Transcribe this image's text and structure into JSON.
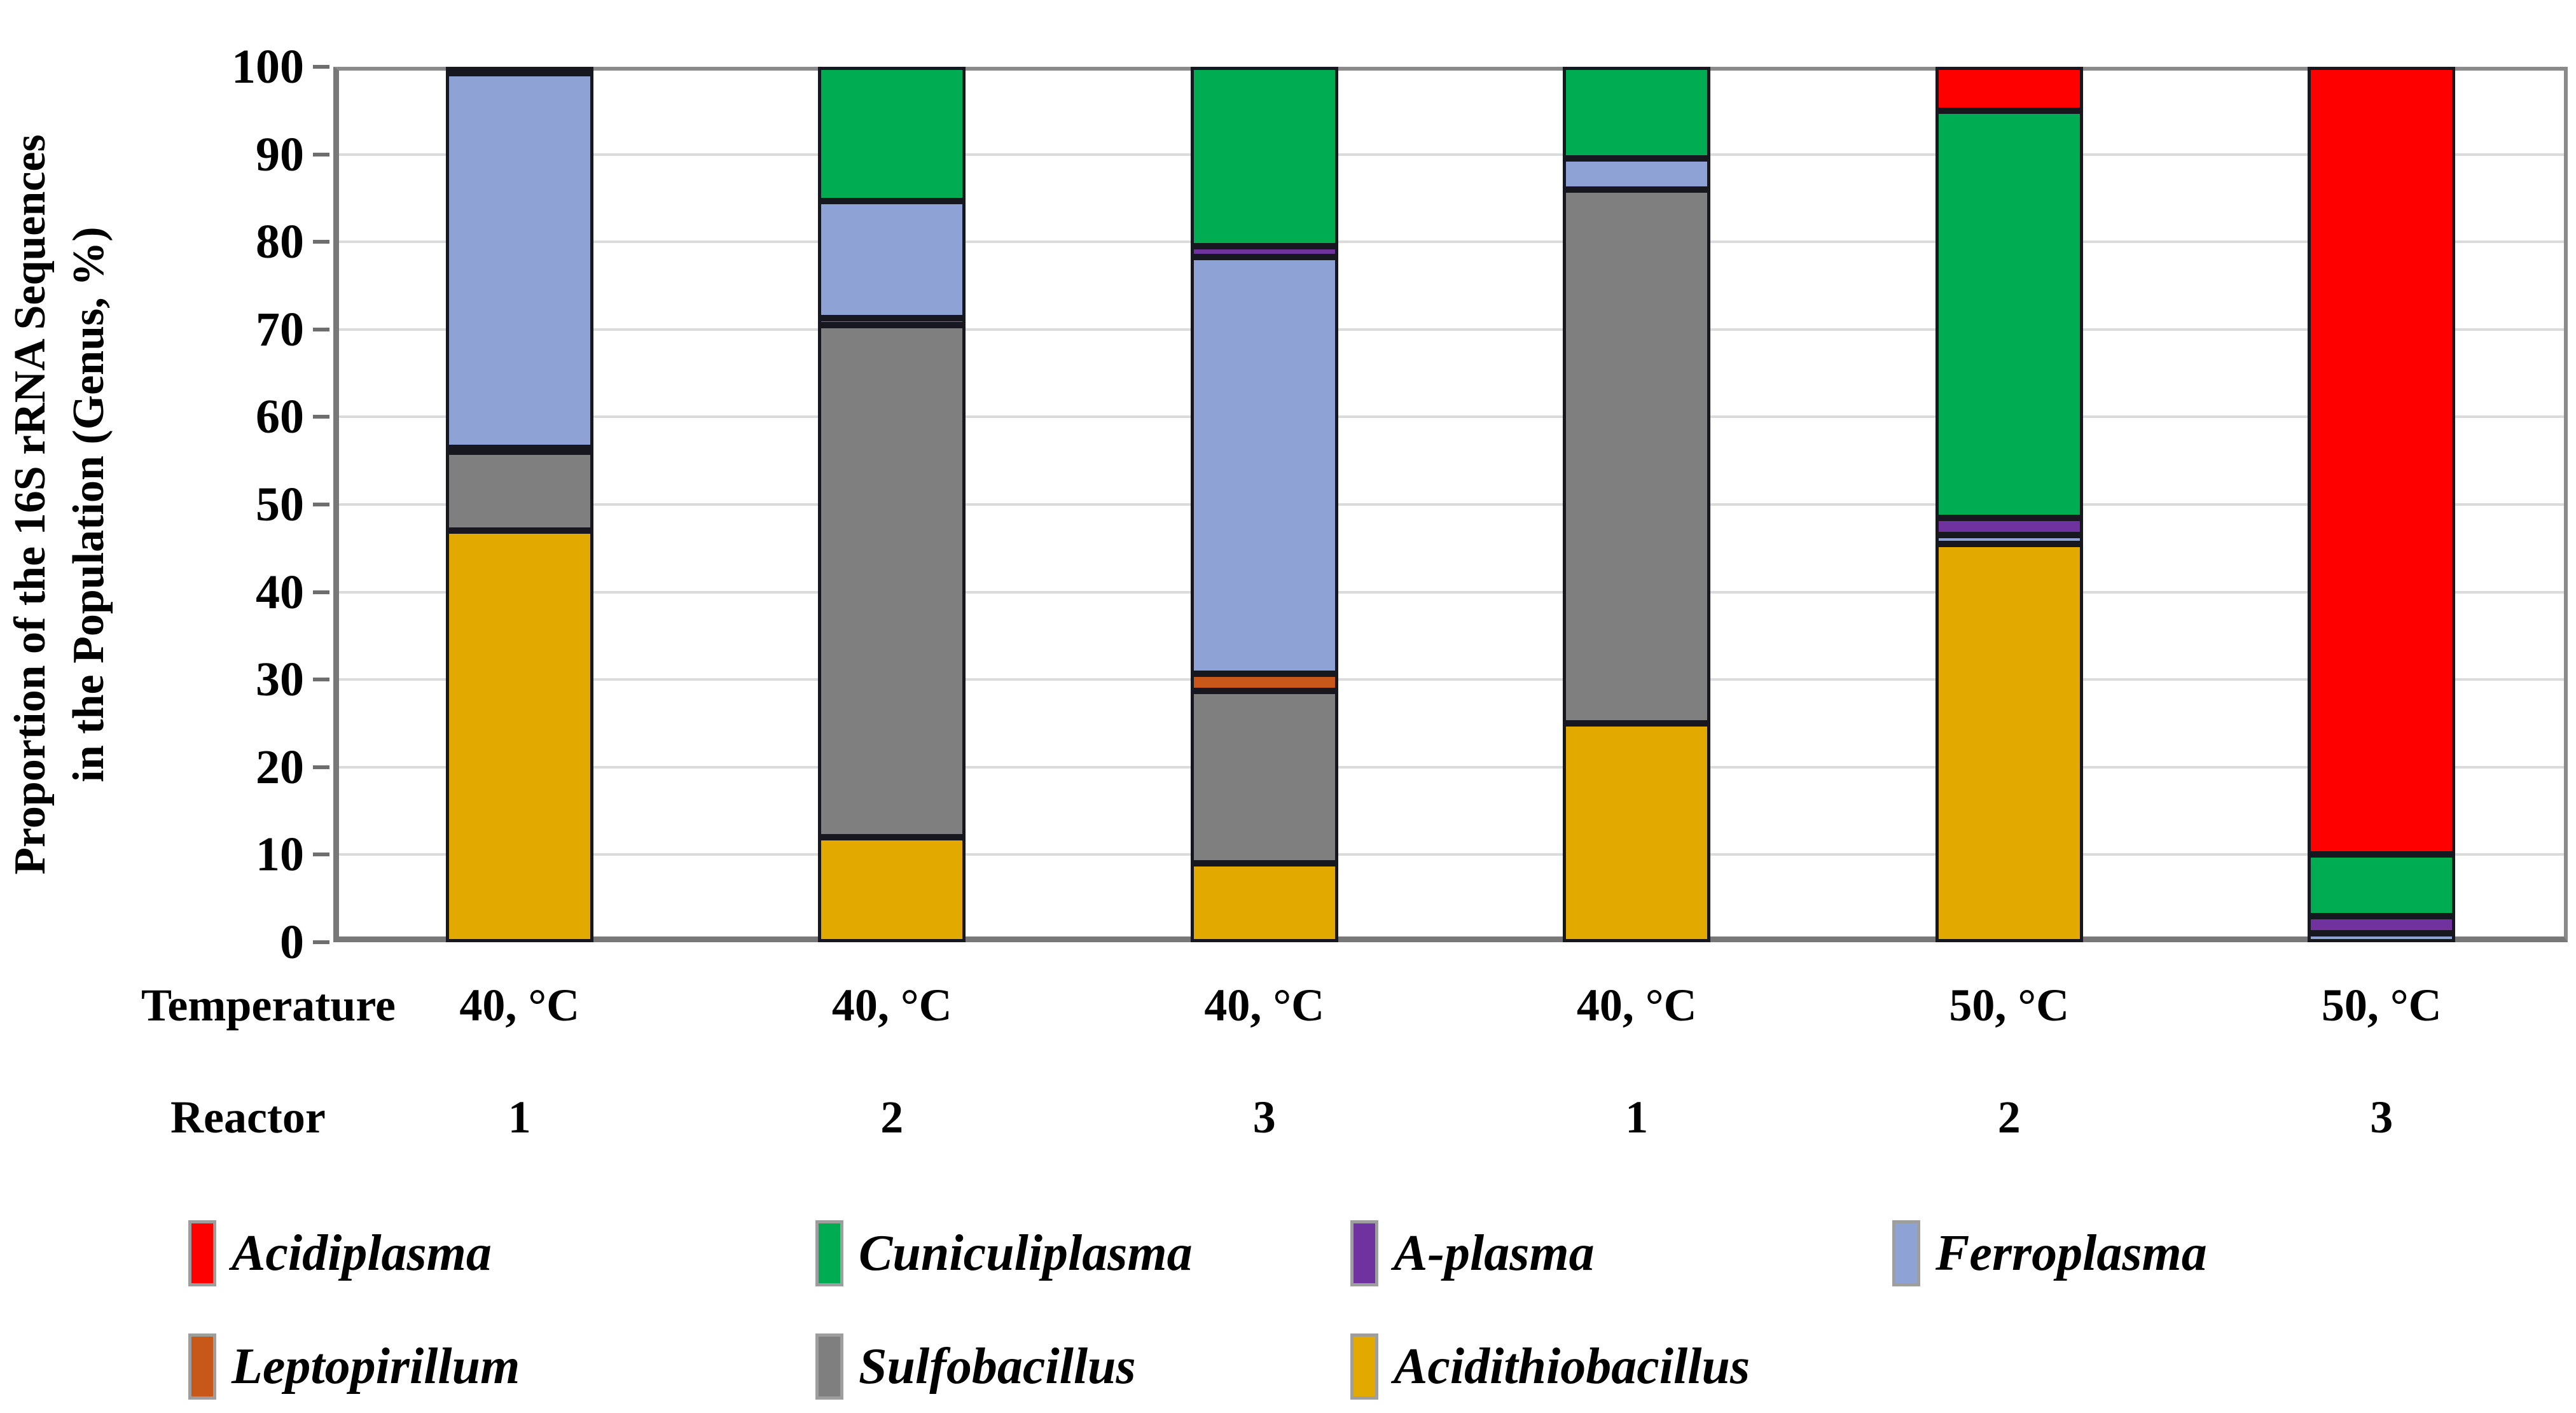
{
  "y_axis": {
    "title_line1": "Proportion of the 16S rRNA Sequences",
    "title_line2": "in the Population (Genus, %)",
    "ticks": [
      0,
      10,
      20,
      30,
      40,
      50,
      60,
      70,
      80,
      90,
      100
    ]
  },
  "x_axis": {
    "temperature_row_label": "Temperature",
    "reactor_row_label": "Reactor",
    "temperatures": [
      "40, °C",
      "40, °C",
      "40, °C",
      "40, °C",
      "50, °C",
      "50, °C"
    ],
    "reactors": [
      "1",
      "2",
      "3",
      "1",
      "2",
      "3"
    ]
  },
  "chart_data": {
    "type": "bar",
    "stacked": true,
    "unit": "%",
    "ylabel": "Proportion of the 16S rRNA Sequences in the Population (Genus, %)",
    "ylim": [
      0,
      100
    ],
    "grid": "horizontal",
    "legend_position": "bottom",
    "categories": [
      {
        "temperature": "40, °C",
        "reactor": "1"
      },
      {
        "temperature": "40, °C",
        "reactor": "2"
      },
      {
        "temperature": "40, °C",
        "reactor": "3"
      },
      {
        "temperature": "40, °C",
        "reactor": "1"
      },
      {
        "temperature": "50, °C",
        "reactor": "2"
      },
      {
        "temperature": "50, °C",
        "reactor": "3"
      }
    ],
    "series": [
      {
        "name": "Acidithiobacillus",
        "color": "#e2a900",
        "values": [
          47.0,
          12.0,
          9.0,
          25.0,
          45.5,
          0.0
        ]
      },
      {
        "name": "Sulfobacillus",
        "color": "#7f7f7f",
        "values": [
          9.0,
          58.5,
          19.7,
          61.0,
          0.0,
          0.0
        ]
      },
      {
        "name": "Leptopirillum",
        "color": "#c8581a",
        "values": [
          0.5,
          0.8,
          2.0,
          0.0,
          0.0,
          0.0
        ]
      },
      {
        "name": "Ferroplasma",
        "color": "#8fa2d6",
        "values": [
          42.8,
          13.4,
          47.6,
          3.5,
          1.0,
          1.0
        ]
      },
      {
        "name": "A-plasma",
        "color": "#6f329e",
        "values": [
          0.0,
          0.0,
          1.2,
          0.0,
          2.0,
          2.0
        ]
      },
      {
        "name": "Cuniculiplasma",
        "color": "#00ac52",
        "values": [
          0.7,
          15.3,
          20.5,
          10.5,
          46.5,
          7.0
        ]
      },
      {
        "name": "Acidiplasma",
        "color": "#ff0000",
        "values": [
          0.0,
          0.0,
          0.0,
          0.0,
          5.0,
          90.0
        ]
      }
    ],
    "legend_rows": [
      [
        "Acidiplasma",
        "Cuniculiplasma",
        "A-plasma",
        "Ferroplasma"
      ],
      [
        "Leptopirillum",
        "Sulfobacillus",
        "Acidithiobacillus"
      ]
    ]
  },
  "colors": {
    "Acidiplasma": "#ff0000",
    "Cuniculiplasma": "#00ac52",
    "A-plasma": "#6f329e",
    "Ferroplasma": "#8fa2d6",
    "Leptopirillum": "#c8581a",
    "Sulfobacillus": "#7f7f7f",
    "Acidithiobacillus": "#e2a900",
    "segment_border": "#17171f",
    "gridline": "#dbdbdb",
    "axis": "#8a8a8a"
  }
}
